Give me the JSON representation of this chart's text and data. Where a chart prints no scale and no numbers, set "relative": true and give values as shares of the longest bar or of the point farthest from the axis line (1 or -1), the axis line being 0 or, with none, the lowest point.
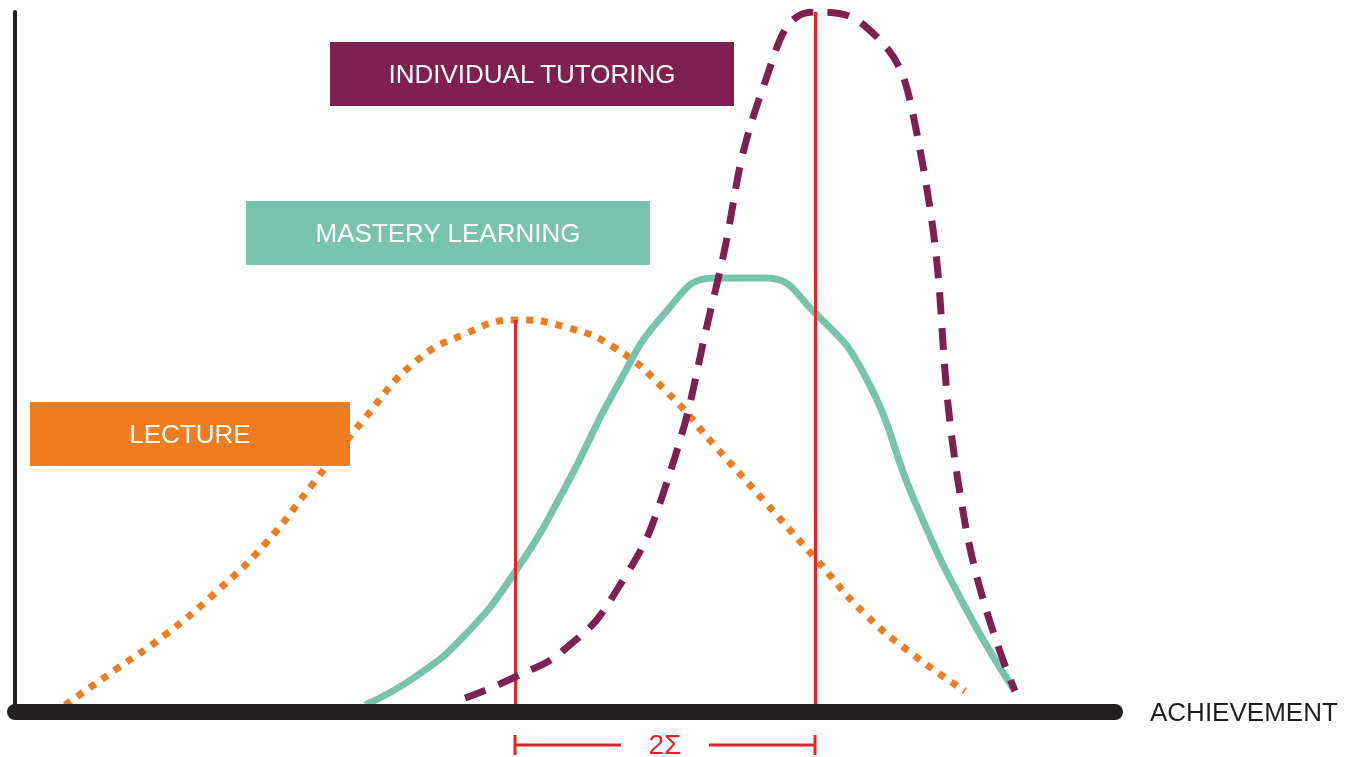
{
  "chart_data": {
    "type": "line",
    "relative": true,
    "xlabel": "ACHIEVEMENT",
    "legend": false,
    "marker": "none",
    "categories": [
      null,
      null,
      null,
      null,
      null,
      null,
      null,
      null,
      null,
      null,
      null,
      null,
      null,
      null,
      null,
      null,
      null,
      null,
      null,
      null,
      null,
      null,
      null
    ],
    "series": [
      {
        "name": "LECTURE",
        "color": "#ee7d22",
        "line_style": "dotted",
        "values": [
          null,
          0.01,
          0.06,
          0.11,
          0.17,
          0.24,
          0.33,
          0.42,
          0.5,
          0.54,
          0.56,
          0.55,
          0.52,
          0.46,
          0.38,
          0.3,
          0.22,
          0.14,
          0.08,
          0.03,
          null,
          null,
          null
        ]
      },
      {
        "name": "MASTERY LEARNING",
        "color": "#79c3ad",
        "line_style": "solid",
        "values": [
          null,
          null,
          null,
          null,
          null,
          null,
          null,
          0.01,
          0.05,
          0.11,
          0.2,
          0.32,
          0.46,
          0.57,
          0.62,
          0.62,
          0.57,
          0.48,
          0.3,
          0.15,
          0.03,
          null,
          null
        ]
      },
      {
        "name": "INDIVIDUAL TUTORING",
        "color": "#7f2150",
        "line_style": "dashed",
        "values": [
          null,
          null,
          null,
          null,
          null,
          null,
          null,
          null,
          null,
          0.02,
          0.05,
          0.09,
          0.17,
          0.32,
          0.6,
          0.9,
          1.0,
          0.98,
          0.84,
          0.27,
          0.03,
          null,
          null
        ]
      }
    ],
    "annotations": [
      "2Σ"
    ]
  }
}
